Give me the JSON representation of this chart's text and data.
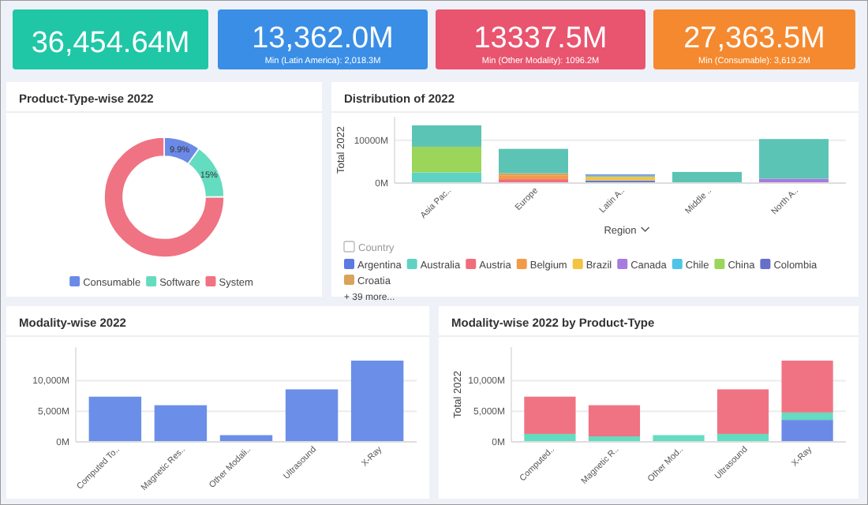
{
  "chart_data": [
    {
      "type": "other",
      "title": "36,454.64M",
      "color": "#1fc7a6"
    },
    {
      "type": "other",
      "title": "13,362.0M",
      "subtitle": "Min (Latin America): 2,018.3M",
      "color": "#3a8ee6"
    },
    {
      "type": "other",
      "title": "13337.5M",
      "subtitle": "Min (Other Modality): 1096.2M",
      "color": "#e9546f"
    },
    {
      "type": "other",
      "title": "27,363.5M",
      "subtitle": "Min (Consumable): 3,619.2M",
      "color": "#f5892f"
    },
    {
      "type": "donut",
      "title": "Product-Type-wise 2022",
      "categories": [
        "Consumable",
        "Software",
        "System"
      ],
      "values": [
        9.9,
        15,
        75.1
      ],
      "value_labels": [
        "9.9%",
        "15%",
        null
      ],
      "colors": [
        "#6b8ae8",
        "#63dcc0",
        "#f07383"
      ],
      "legend": "bottom"
    },
    {
      "type": "bar",
      "title": "Distribution of 2022",
      "xlabel": "Region",
      "ylabel": "Total 2022",
      "legend_title": "Country",
      "annotations": [
        "+ 39 more..."
      ],
      "categories": [
        "Asia Pac..",
        "Europe",
        "Latin A..",
        "Middle ..",
        "North A.."
      ],
      "stacked": true,
      "legend": "bottom",
      "grid": "y",
      "ylim": [
        0,
        15500
      ],
      "yticks": [
        {
          "value": 0,
          "label": "0M"
        },
        {
          "value": 10000,
          "label": "10000M"
        }
      ],
      "series": [
        {
          "name": "Argentina",
          "color": "#5b7be0",
          "values": [
            0,
            0,
            600,
            0,
            0
          ]
        },
        {
          "name": "Australia",
          "color": "#5fd3c3",
          "values": [
            2500,
            0,
            0,
            0,
            0
          ]
        },
        {
          "name": "Austria",
          "color": "#f06d7b",
          "values": [
            0,
            900,
            0,
            0,
            0
          ]
        },
        {
          "name": "Belgium",
          "color": "#f39a4a",
          "values": [
            0,
            800,
            0,
            0,
            0
          ]
        },
        {
          "name": "Brazil",
          "color": "#f5c242",
          "values": [
            0,
            0,
            900,
            0,
            0
          ]
        },
        {
          "name": "Canada",
          "color": "#a77be0",
          "values": [
            0,
            0,
            0,
            0,
            1000
          ]
        },
        {
          "name": "Chile",
          "color": "#4fc3e8",
          "values": [
            0,
            0,
            300,
            0,
            0
          ]
        },
        {
          "name": "China",
          "color": "#9bd55a",
          "values": [
            6000,
            0,
            0,
            0,
            0
          ]
        },
        {
          "name": "Colombia",
          "color": "#6670c8",
          "values": [
            0,
            0,
            200,
            0,
            0
          ]
        },
        {
          "name": "Croatia",
          "color": "#d9a35a",
          "values": [
            0,
            600,
            0,
            0,
            0
          ]
        },
        {
          "color": "#5cc4b4",
          "values": [
            5000,
            5700,
            0,
            2600,
            9300
          ]
        }
      ]
    },
    {
      "type": "bar",
      "title": "Modality-wise 2022",
      "categories": [
        "Computed To..",
        "Magnetic Res..",
        "Other Modali..",
        "Ultrasound",
        "X-Ray"
      ],
      "grid": "y",
      "values": [
        7400,
        6000,
        1100,
        8600,
        13300
      ],
      "color": "#6b8ee8",
      "ylim": [
        0,
        15500
      ],
      "yticks": [
        {
          "value": 0,
          "label": "0M"
        },
        {
          "value": 5000,
          "label": "5,000M"
        },
        {
          "value": 10000,
          "label": "10,000M"
        }
      ]
    },
    {
      "type": "bar",
      "title": "Modality-wise 2022 by Product-Type",
      "ylabel": "Total 2022",
      "categories": [
        "Computed..",
        "Magnetic R..",
        "Other Mod..",
        "Ultrasound",
        "X-Ray"
      ],
      "stacked": true,
      "grid": "y",
      "ylim": [
        0,
        15500
      ],
      "yticks": [
        {
          "value": 0,
          "label": "0M"
        },
        {
          "value": 5000,
          "label": "5,000M"
        },
        {
          "value": 10000,
          "label": "10,000M"
        }
      ],
      "series": [
        {
          "color": "#6b8ae8",
          "values": [
            0,
            0,
            0,
            0,
            3600
          ]
        },
        {
          "color": "#63dcc0",
          "values": [
            1300,
            900,
            1100,
            1300,
            1200
          ]
        },
        {
          "color": "#f07383",
          "values": [
            6100,
            5100,
            0,
            7300,
            8500
          ]
        }
      ]
    }
  ]
}
